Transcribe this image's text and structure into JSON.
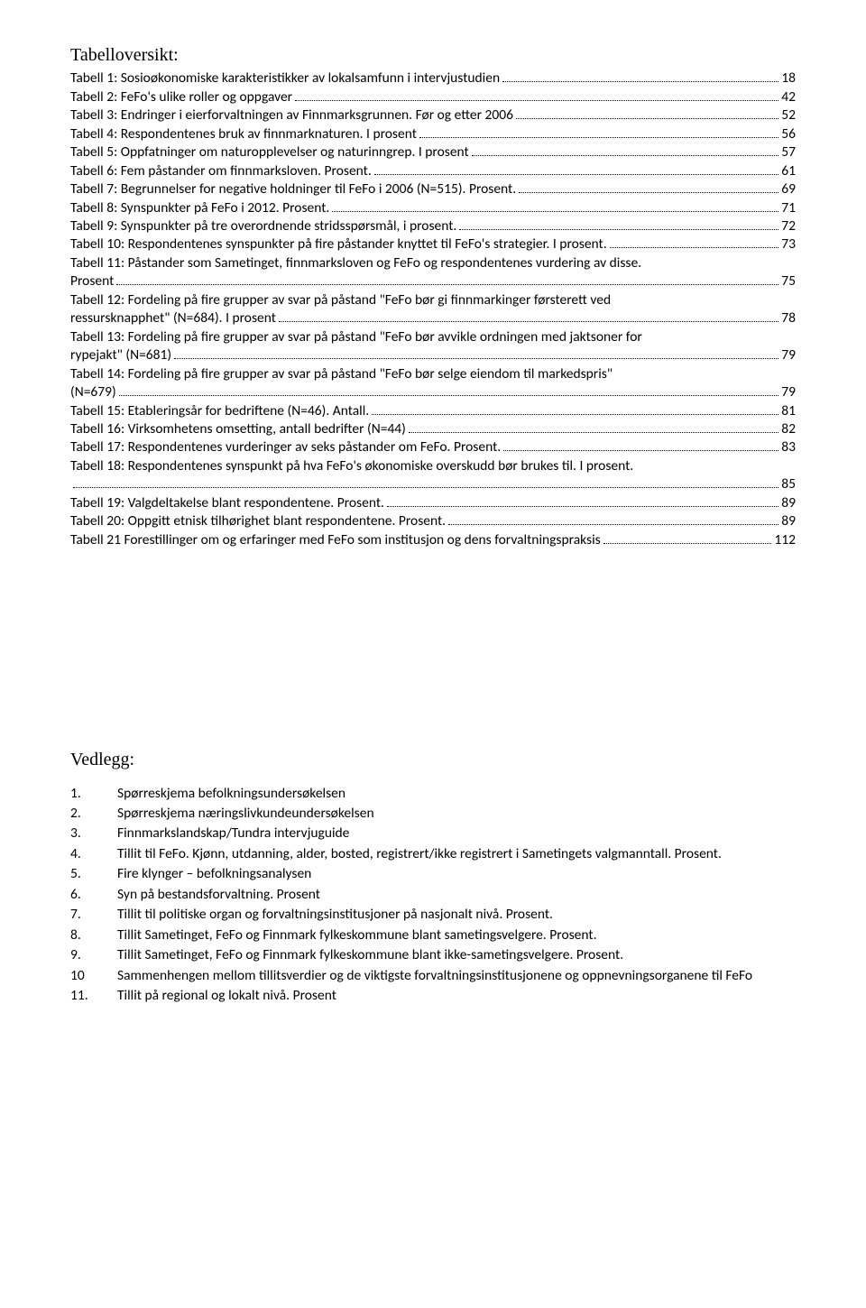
{
  "toc": {
    "title": "Tabelloversikt:",
    "entries": [
      {
        "label": "Tabell 1: Sosioøkonomiske karakteristikker av lokalsamfunn i intervjustudien",
        "page": "18"
      },
      {
        "label": "Tabell 2: FeFo's ulike roller og oppgaver",
        "page": "42"
      },
      {
        "label": "Tabell 3: Endringer i eierforvaltningen av Finnmarksgrunnen. Før og etter 2006",
        "page": "52"
      },
      {
        "label": "Tabell 4: Respondentenes bruk av finnmarknaturen. I prosent",
        "page": "56"
      },
      {
        "label": "Tabell 5: Oppfatninger om naturopplevelser og naturinngrep. I prosent",
        "page": "57"
      },
      {
        "label": "Tabell 6: Fem påstander om finnmarksloven. Prosent.",
        "page": "61"
      },
      {
        "label": "Tabell 7: Begrunnelser for negative holdninger til FeFo i 2006 (N=515). Prosent.",
        "page": "69"
      },
      {
        "label": "Tabell 8: Synspunkter på FeFo i 2012. Prosent.",
        "page": "71"
      },
      {
        "label": "Tabell 9: Synspunkter på tre overordnende stridsspørsmål, i prosent.",
        "page": "72"
      },
      {
        "label": "Tabell 10: Respondentenes synspunkter på fire påstander knyttet til FeFo's strategier. I prosent.",
        "page": "73"
      },
      {
        "label_line1": "Tabell 11: Påstander som Sametinget, finnmarksloven og FeFo og respondentenes vurdering av disse.",
        "label_line2": "Prosent",
        "page": "75"
      },
      {
        "label_line1": "Tabell 12: Fordeling på fire grupper av svar på påstand \"FeFo bør gi finnmarkinger førsterett ved",
        "label_line2": "ressursknapphet\" (N=684). I prosent",
        "page": "78"
      },
      {
        "label_line1": "Tabell 13: Fordeling på fire grupper av svar på påstand \"FeFo bør avvikle ordningen med jaktsoner for",
        "label_line2": "rypejakt\" (N=681)",
        "page": "79"
      },
      {
        "label_line1": "Tabell 14: Fordeling på fire grupper av svar på påstand \"FeFo bør selge eiendom til markedspris\"",
        "label_line2": "(N=679)",
        "page": "79"
      },
      {
        "label": "Tabell 15: Etableringsår for bedriftene (N=46). Antall.",
        "page": "81"
      },
      {
        "label": "Tabell 16: Virksomhetens omsetting, antall bedrifter (N=44)",
        "page": "82"
      },
      {
        "label": "Tabell 17: Respondentenes vurderinger av seks påstander om FeFo. Prosent.",
        "page": "83"
      },
      {
        "label_line1": "Tabell 18: Respondentenes synspunkt på hva FeFo's økonomiske overskudd bør brukes til. I prosent.",
        "label_line2": "",
        "page": "85"
      },
      {
        "label": "Tabell 19: Valgdeltakelse blant respondentene. Prosent.",
        "page": "89"
      },
      {
        "label": "Tabell 20: Oppgitt etnisk tilhørighet blant respondentene. Prosent.",
        "page": "89"
      },
      {
        "label": "Tabell 21 Forestillinger om og erfaringer med FeFo som institusjon og dens forvaltningspraksis",
        "page": "112"
      }
    ]
  },
  "vedlegg": {
    "title": "Vedlegg:",
    "items": [
      {
        "num": "1.",
        "text": "Spørreskjema befolkningsundersøkelsen"
      },
      {
        "num": "2.",
        "text": "Spørreskjema næringslivkundeundersøkelsen"
      },
      {
        "num": "3.",
        "text": "Finnmarkslandskap/Tundra intervjuguide"
      },
      {
        "num": "4.",
        "text": "Tillit til FeFo. Kjønn, utdanning, alder, bosted, registrert/ikke registrert i Sametingets valgmanntall. Prosent."
      },
      {
        "num": "5.",
        "text": "Fire klynger – befolkningsanalysen"
      },
      {
        "num": "6.",
        "text": "Syn på bestandsforvaltning. Prosent"
      },
      {
        "num": "7.",
        "text": "Tillit til politiske organ og forvaltningsinstitusjoner på nasjonalt nivå. Prosent."
      },
      {
        "num": "8.",
        "text": "Tillit Sametinget, FeFo og Finnmark fylkeskommune blant sametingsvelgere. Prosent."
      },
      {
        "num": "9.",
        "text": "Tillit Sametinget, FeFo og Finnmark fylkeskommune blant ikke-sametingsvelgere. Prosent."
      },
      {
        "num": "10",
        "text": "Sammenhengen mellom tillitsverdier og de viktigste forvaltningsinstitusjonene og oppnevningsorganene til FeFo"
      },
      {
        "num": "11.",
        "text": "Tillit på regional og lokalt nivå. Prosent"
      }
    ]
  }
}
